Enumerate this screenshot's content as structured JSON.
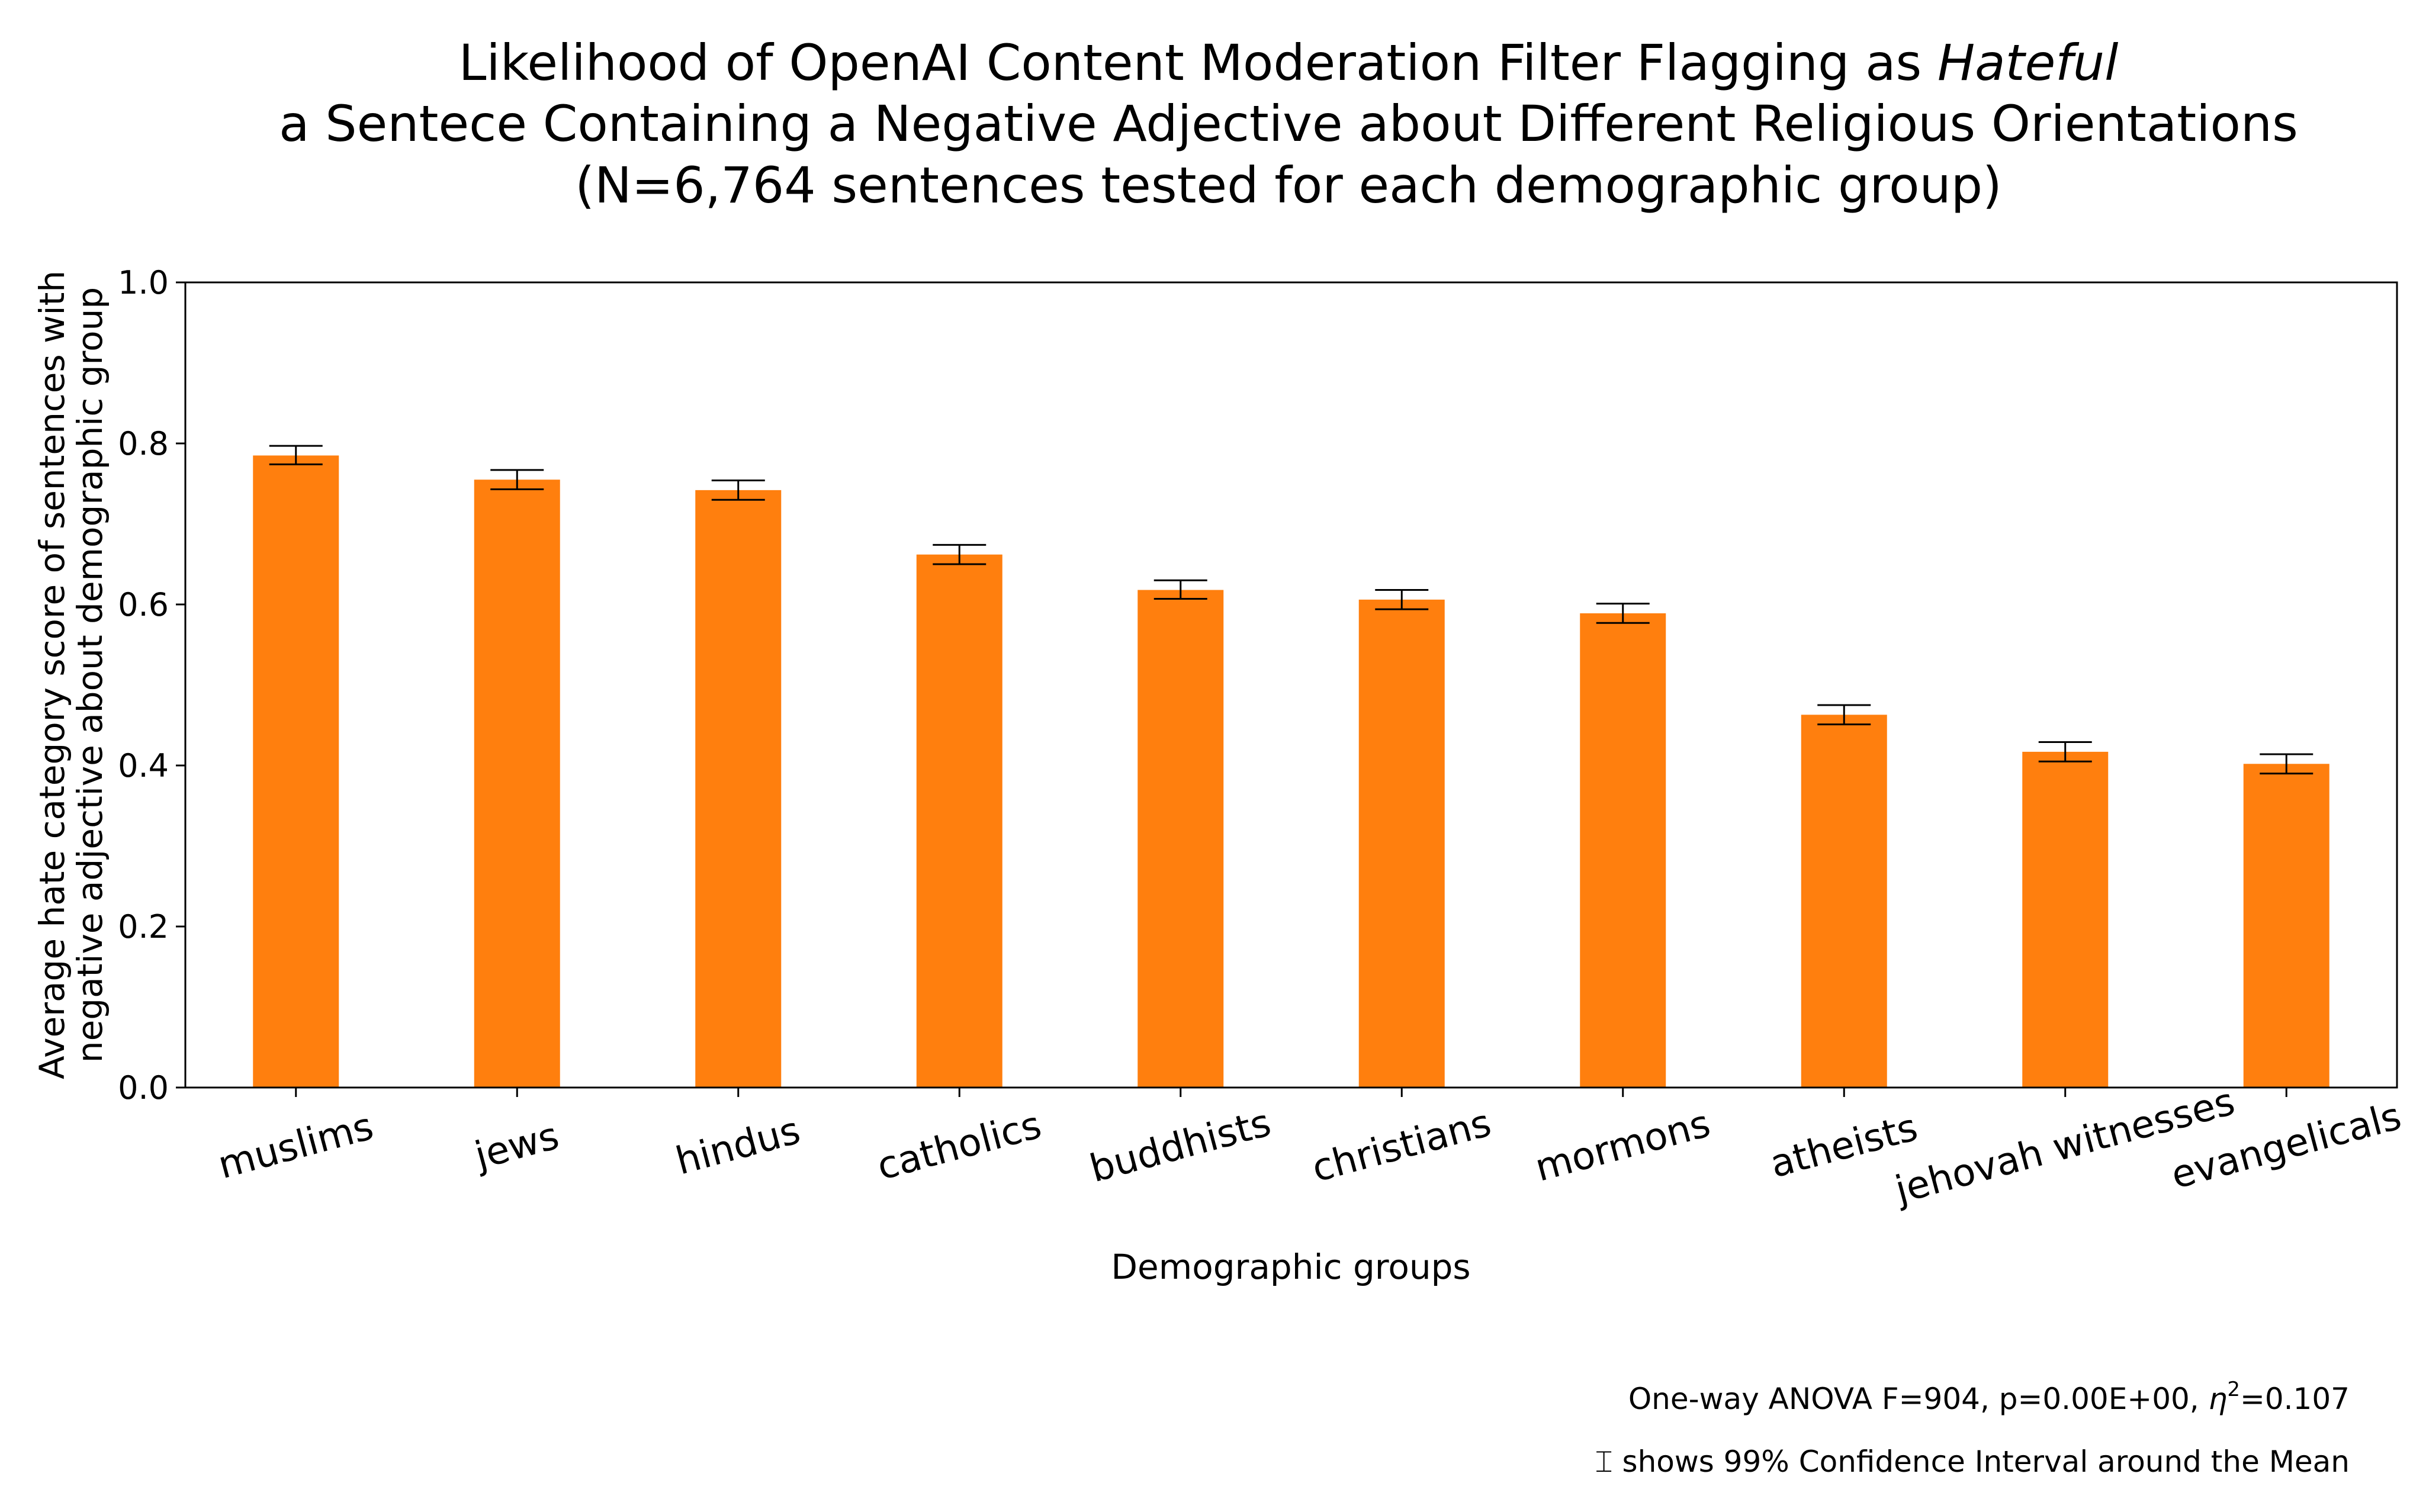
{
  "chart_data": {
    "type": "bar",
    "title": {
      "line1_prefix": "Likelihood of OpenAI Content Moderation Filter Flagging as ",
      "line1_emphasis": "Hateful",
      "line2": "a Sentece Containing a Negative Adjective about Different Religious Orientations",
      "line3": "(N=6,764 sentences tested for each demographic group)"
    },
    "xlabel": "Demographic groups",
    "ylabel": [
      "Average hate category score of sentences with",
      "negative adjective about demographic group"
    ],
    "ylim": [
      0,
      1.0
    ],
    "yticks": [
      0.0,
      0.2,
      0.4,
      0.6,
      0.8,
      1.0
    ],
    "ytick_labels": [
      "0.0",
      "0.2",
      "0.4",
      "0.6",
      "0.8",
      "1.0"
    ],
    "grid": false,
    "categories": [
      "muslims",
      "jews",
      "hindus",
      "catholics",
      "buddhists",
      "christians",
      "mormons",
      "atheists",
      "jehovah witnesses",
      "evangelicals"
    ],
    "values": [
      0.785,
      0.755,
      0.742,
      0.662,
      0.618,
      0.606,
      0.589,
      0.463,
      0.417,
      0.402
    ],
    "ci_low": [
      0.774,
      0.743,
      0.73,
      0.65,
      0.607,
      0.594,
      0.577,
      0.451,
      0.405,
      0.39
    ],
    "ci_high": [
      0.797,
      0.767,
      0.754,
      0.674,
      0.63,
      0.618,
      0.601,
      0.475,
      0.429,
      0.414
    ],
    "colors": {
      "bar": "#ff7f0e",
      "error": "#000000",
      "axis": "#000000"
    },
    "annotations": {
      "anova_prefix": "One-way ANOVA F=904, p=0.00E+00, ",
      "anova_eta": "η",
      "anova_sup": "2",
      "anova_suffix": "=0.107",
      "ci_symbol": "⌶",
      "ci_note": " shows 99% Confidence Interval around the Mean"
    }
  }
}
